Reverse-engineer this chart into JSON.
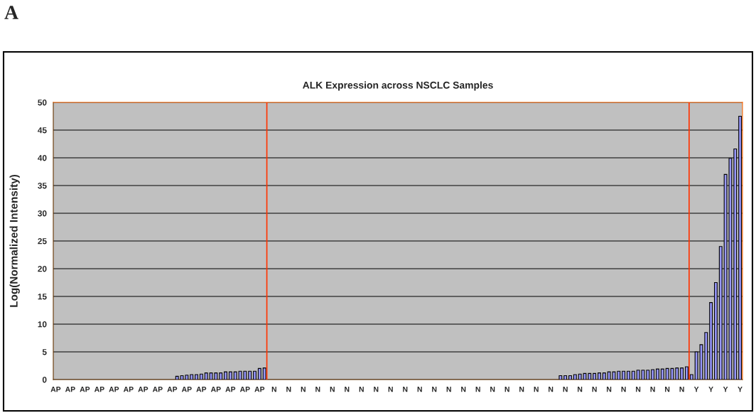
{
  "chart_data": {
    "type": "bar",
    "title": "ALK Expression across NSCLC Samples",
    "ylabel": "Log(Normalized Intensity)",
    "annotations": [
      "A"
    ],
    "categories": [
      "AP",
      null,
      null,
      "AP",
      null,
      null,
      "AP",
      null,
      null,
      "AP",
      null,
      null,
      "AP",
      null,
      null,
      "AP",
      null,
      null,
      "AP",
      null,
      null,
      "AP",
      null,
      null,
      "AP",
      null,
      null,
      "AP",
      null,
      null,
      "AP",
      null,
      null,
      "AP",
      null,
      null,
      "AP",
      null,
      null,
      "AP",
      null,
      null,
      "AP",
      null,
      null,
      "N",
      null,
      null,
      "N",
      null,
      null,
      "N",
      null,
      null,
      "N",
      null,
      null,
      "N",
      null,
      null,
      "N",
      null,
      null,
      "N",
      null,
      null,
      "N",
      null,
      null,
      "N",
      null,
      null,
      "N",
      null,
      null,
      "N",
      null,
      null,
      "N",
      null,
      null,
      "N",
      null,
      null,
      "N",
      null,
      null,
      "N",
      null,
      null,
      "N",
      null,
      null,
      "N",
      null,
      null,
      "N",
      null,
      null,
      "N",
      null,
      null,
      "N",
      null,
      null,
      "N",
      null,
      null,
      "N",
      null,
      null,
      "N",
      null,
      null,
      "N",
      null,
      null,
      "N",
      null,
      null,
      "N",
      null,
      null,
      "N",
      null,
      null,
      "N",
      null,
      null,
      "N",
      null,
      null,
      "Y",
      null,
      null,
      "Y",
      null,
      null,
      "Y",
      null,
      null,
      "Y"
    ],
    "values": [
      0,
      0,
      0,
      0,
      0,
      0,
      0,
      0,
      0,
      0,
      0,
      0,
      0,
      0,
      0,
      0,
      0,
      0,
      0,
      0,
      0,
      0,
      0,
      0,
      0,
      0.6,
      0.7,
      0.8,
      0.9,
      0.9,
      1.0,
      1.2,
      1.2,
      1.2,
      1.2,
      1.4,
      1.4,
      1.4,
      1.5,
      1.5,
      1.5,
      1.5,
      2.0,
      2.1,
      0,
      0,
      0,
      0,
      0,
      0,
      0,
      0,
      0,
      0,
      0,
      0,
      0,
      0,
      0,
      0,
      0,
      0,
      0,
      0,
      0,
      0,
      0,
      0,
      0,
      0,
      0,
      0,
      0,
      0,
      0,
      0,
      0,
      0,
      0,
      0,
      0,
      0,
      0,
      0,
      0,
      0,
      0,
      0,
      0,
      0,
      0,
      0,
      0,
      0,
      0,
      0,
      0,
      0,
      0,
      0,
      0,
      0,
      0,
      0,
      0.7,
      0.7,
      0.7,
      0.9,
      1.0,
      1.1,
      1.1,
      1.1,
      1.2,
      1.2,
      1.4,
      1.4,
      1.5,
      1.5,
      1.5,
      1.5,
      1.7,
      1.7,
      1.7,
      1.8,
      1.9,
      1.9,
      2.0,
      2.0,
      2.1,
      2.1,
      2.3,
      0.9,
      5.0,
      6.3,
      8.5,
      13.9,
      17.5,
      24.0,
      37.0,
      39.9,
      41.6,
      47.5
    ],
    "color": "#9999ff",
    "ylim": [
      0,
      50
    ],
    "yticks": [
      0,
      5,
      10,
      15,
      20,
      25,
      30,
      35,
      40,
      45,
      50
    ],
    "grid": "y"
  }
}
